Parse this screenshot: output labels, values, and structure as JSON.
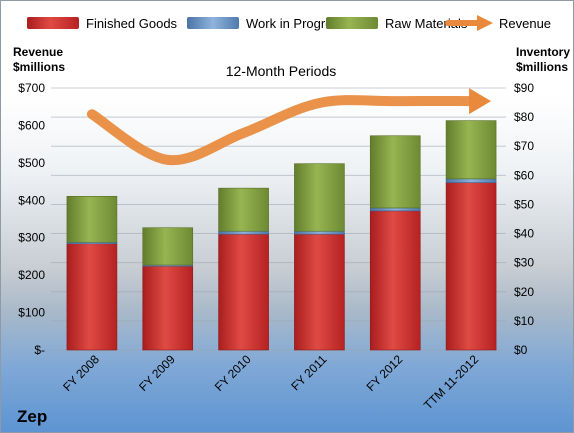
{
  "chart_data": {
    "type": "bar",
    "title": "12-Month Periods",
    "y_left_label": [
      "Revenue",
      "$millions"
    ],
    "y_right_label": [
      "Inventory",
      "$millions"
    ],
    "categories": [
      "FY 2008",
      "FY 2009",
      "FY 2010",
      "FY 2011",
      "FY 2012",
      "TTM 11-2012"
    ],
    "stacked_series": [
      {
        "name": "Finished Goods",
        "color": "#c8302f",
        "values": [
          36.5,
          28.8,
          39.8,
          39.8,
          47.8,
          57.5
        ]
      },
      {
        "name": "Work in Progress",
        "color": "#5b86b6",
        "values": [
          0.5,
          0.4,
          1.0,
          1.0,
          1.0,
          1.3
        ]
      },
      {
        "name": "Raw Materials",
        "color": "#7a993b",
        "values": [
          15.8,
          12.8,
          14.8,
          23.2,
          24.8,
          20.0
        ]
      }
    ],
    "line_series": {
      "name": "Revenue",
      "color": "#e8893b",
      "values": [
        630,
        508,
        580,
        660,
        665,
        665
      ]
    },
    "y_left_ticks": [
      "$-",
      "$100",
      "$200",
      "$300",
      "$400",
      "$500",
      "$600",
      "$700"
    ],
    "y_right_ticks": [
      "$0",
      "$10",
      "$20",
      "$30",
      "$40",
      "$50",
      "$60",
      "$70",
      "$80",
      "$90"
    ],
    "ylim_left": [
      0,
      700
    ],
    "ylim_right": [
      0,
      90
    ],
    "legend_position": "top",
    "grid": true
  },
  "company": "Zep"
}
